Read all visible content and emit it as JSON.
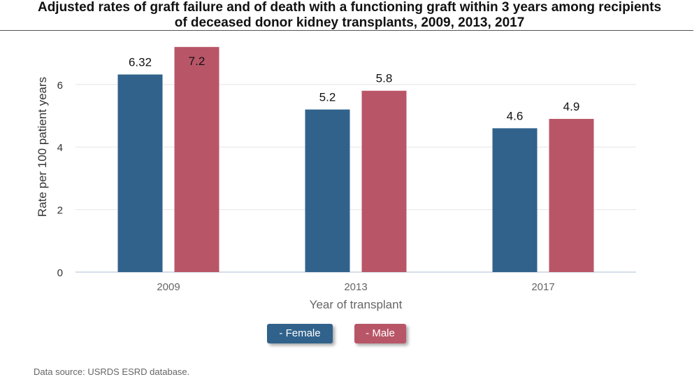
{
  "chart_data": {
    "type": "bar",
    "title_lines": [
      "Adjusted rates of graft failure and of death with a functioning graft within 3 years among recipients",
      "of deceased donor kidney transplants, 2009, 2013, 2017"
    ],
    "xlabel": "Year of transplant",
    "ylabel": "Rate per 100 patient years",
    "categories": [
      "2009",
      "2013",
      "2017"
    ],
    "ylim": [
      0,
      7.5
    ],
    "yticks": [
      0,
      2,
      4,
      6
    ],
    "grid": true,
    "legend_position": "bottom",
    "series": [
      {
        "name": "- Female",
        "color": "#30628b",
        "values": [
          6.32,
          5.2,
          4.6
        ],
        "labels": [
          "6.32",
          "5.2",
          "4.6"
        ]
      },
      {
        "name": "- Male",
        "color": "#b85667",
        "values": [
          7.2,
          5.8,
          4.9
        ],
        "labels": [
          "7.2",
          "5.8",
          "4.9"
        ]
      }
    ],
    "source": "Data source: USRDS ESRD database."
  }
}
